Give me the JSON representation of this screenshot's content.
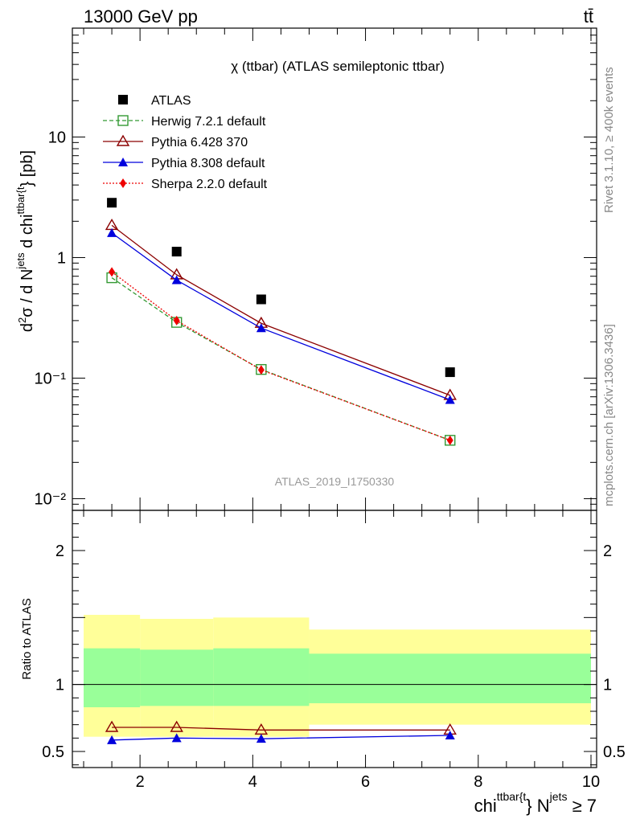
{
  "header": {
    "left_label": "13000 GeV pp",
    "right_label": "tt̄"
  },
  "side_labels": {
    "rivet": "Rivet 3.1.10, ≥ 400k events",
    "mcplots": "mcplots.cern.ch [arXiv:1306.3436]"
  },
  "chart_data": [
    {
      "type": "scatter",
      "panel": "main",
      "title": "χ (ttbar) (ATLAS semileptonic ttbar)",
      "ylabel": "d²σ / d N^jets d chi^ttbar{t} [pb]",
      "ylabel_parts": {
        "a": "d",
        "b": "2",
        "c": "σ / d N",
        "d": "jets",
        "e": " d chi",
        "f": "ttbar{t",
        "g": "} [pb]"
      },
      "yscale": "log",
      "ylim": [
        0.008,
        80
      ],
      "xlim": [
        0.8,
        10.1
      ],
      "watermark": "ATLAS_2019_I1750330",
      "legend_position": "top-left",
      "y_tick_labels": [
        "10⁻²",
        "10⁻¹",
        "1",
        "10"
      ],
      "y_tick_values": [
        0.01,
        0.1,
        1,
        10
      ],
      "series": [
        {
          "name": "ATLAS",
          "marker": "filled-square",
          "color": "#000000",
          "x": [
            1.5,
            2.65,
            4.15,
            7.5
          ],
          "y": [
            2.85,
            1.12,
            0.45,
            0.112
          ]
        },
        {
          "name": "Herwig 7.2.1 default",
          "marker": "open-square",
          "line": "dashed",
          "color": "#339933",
          "x": [
            1.5,
            2.65,
            4.15,
            7.5
          ],
          "y": [
            0.68,
            0.29,
            0.118,
            0.0305
          ]
        },
        {
          "name": "Pythia 6.428 370",
          "marker": "open-triangle",
          "line": "solid",
          "color": "#8b0000",
          "x": [
            1.5,
            2.65,
            4.15,
            7.5
          ],
          "y": [
            1.85,
            0.72,
            0.285,
            0.072
          ]
        },
        {
          "name": "Pythia 8.308 default",
          "marker": "filled-triangle",
          "line": "solid",
          "color": "#0000dd",
          "x": [
            1.5,
            2.65,
            4.15,
            7.5
          ],
          "y": [
            1.6,
            0.65,
            0.26,
            0.066
          ]
        },
        {
          "name": "Sherpa 2.2.0 default",
          "marker": "filled-diamond",
          "line": "dotted",
          "color": "#ee0000",
          "x": [
            1.5,
            2.65,
            4.15,
            7.5
          ],
          "y": [
            0.76,
            0.3,
            0.117,
            0.0305
          ]
        }
      ]
    },
    {
      "type": "line",
      "panel": "ratio",
      "ylabel": "Ratio to ATLAS",
      "xlabel": "chi^ttbar{t} N^jets ≥ 7",
      "xlabel_parts": {
        "a": "chi",
        "b": "ttbar{t",
        "c": "} N",
        "d": "jets",
        "e": " ≥ 7"
      },
      "ylim": [
        0.38,
        2.3
      ],
      "xlim": [
        0.8,
        10.1
      ],
      "x_tick_labels": [
        "2",
        "4",
        "6",
        "8",
        "10"
      ],
      "x_tick_values": [
        2,
        4,
        6,
        8,
        10
      ],
      "y_tick_labels": [
        "0.5",
        "1",
        "2"
      ],
      "y_tick_values": [
        0.5,
        1,
        2
      ],
      "bands": [
        {
          "x_low": 1.0,
          "x_high": 2.0,
          "outer": [
            0.61,
            1.52
          ],
          "inner": [
            0.83,
            1.27
          ]
        },
        {
          "x_low": 2.0,
          "x_high": 3.3,
          "outer": [
            0.61,
            1.49
          ],
          "inner": [
            0.84,
            1.26
          ]
        },
        {
          "x_low": 3.3,
          "x_high": 5.0,
          "outer": [
            0.61,
            1.5
          ],
          "inner": [
            0.84,
            1.27
          ]
        },
        {
          "x_low": 5.0,
          "x_high": 10.0,
          "outer": [
            0.7,
            1.41
          ],
          "inner": [
            0.86,
            1.23
          ]
        }
      ],
      "series": [
        {
          "name": "Pythia 6.428 370",
          "marker": "open-triangle",
          "color": "#8b0000",
          "x": [
            1.5,
            2.65,
            4.15,
            7.5
          ],
          "y": [
            0.68,
            0.68,
            0.66,
            0.66
          ]
        },
        {
          "name": "Pythia 8.308 default",
          "marker": "filled-triangle",
          "color": "#0000dd",
          "x": [
            1.5,
            2.65,
            4.15,
            7.5
          ],
          "y": [
            0.585,
            0.6,
            0.595,
            0.62
          ]
        }
      ]
    }
  ]
}
